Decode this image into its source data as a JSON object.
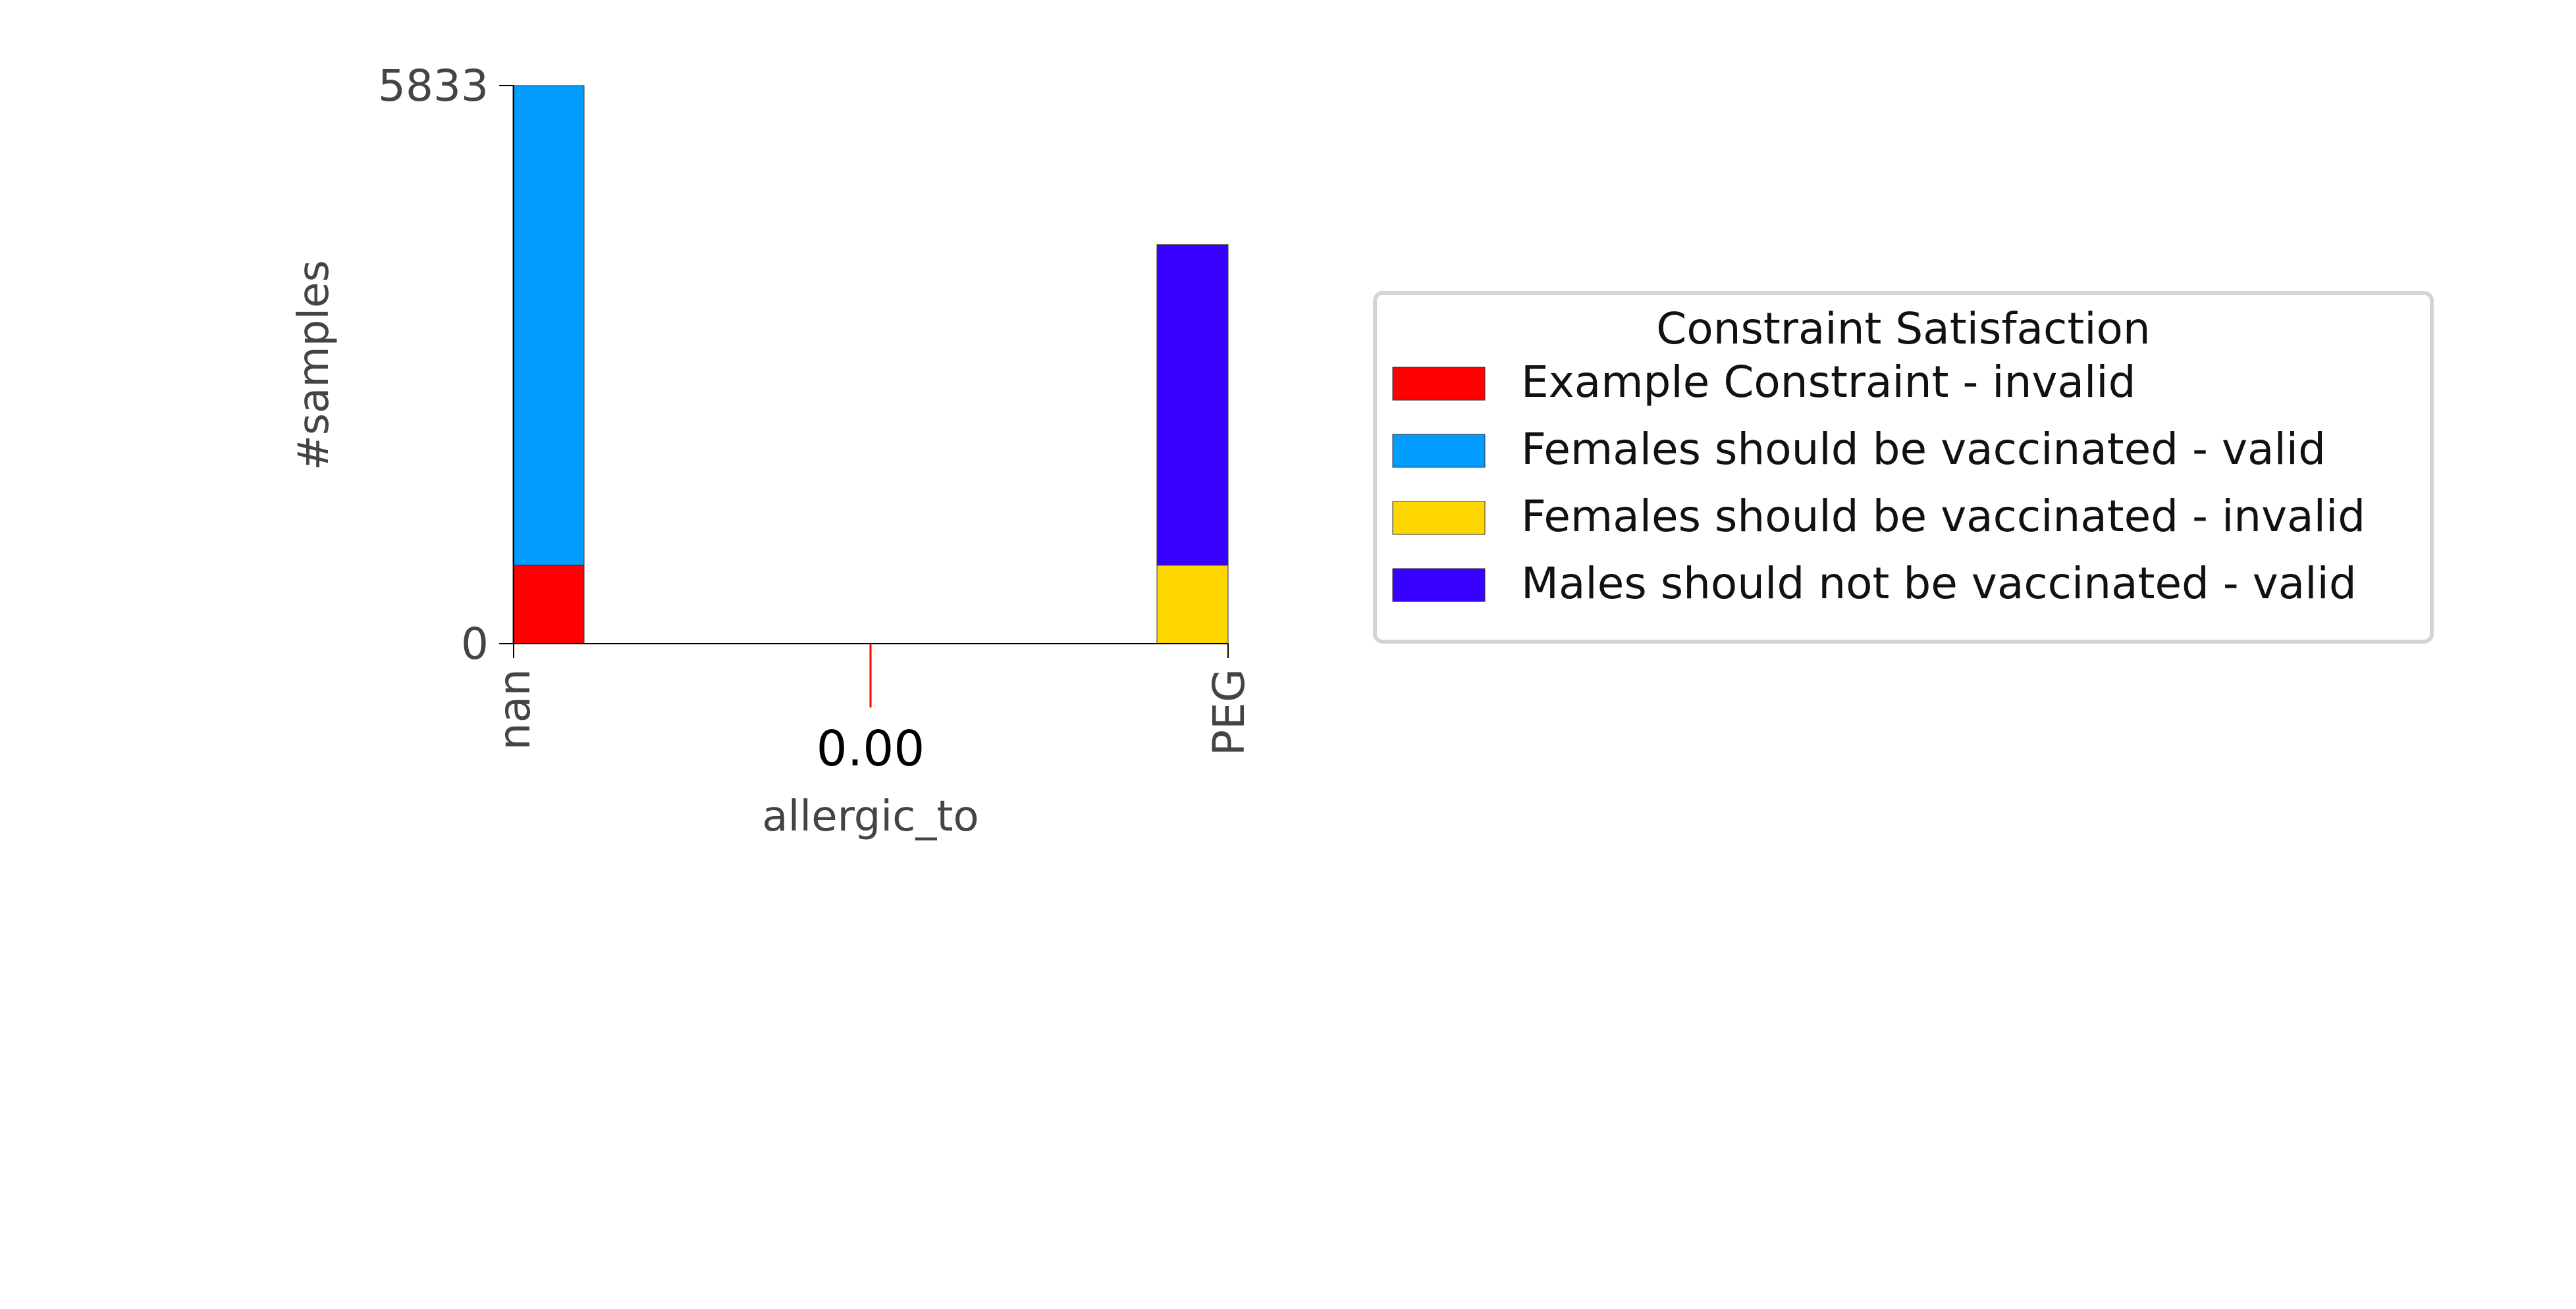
{
  "chart_data": {
    "type": "bar",
    "stacked": true,
    "categories": [
      "nan",
      "PEG"
    ],
    "xlabel": "allergic_to",
    "ylabel": "#samples",
    "ylim": [
      0,
      5833
    ],
    "yticks": [
      "0",
      "5833"
    ],
    "marker_label": "0.00",
    "series": [
      {
        "name": "Example Constraint - invalid",
        "color": "#ff0000",
        "values": [
          820,
          0
        ]
      },
      {
        "name": "Females should be vaccinated - valid",
        "color": "#009dff",
        "values": [
          5013,
          0
        ]
      },
      {
        "name": "Females should be vaccinated - invalid",
        "color": "#ffd700",
        "values": [
          0,
          820
        ]
      },
      {
        "name": "Males should not be vaccinated - valid",
        "color": "#3700ff",
        "values": [
          0,
          3350
        ]
      }
    ],
    "legend": {
      "title": "Constraint Satisfaction",
      "placement": "right"
    },
    "grid": false
  }
}
